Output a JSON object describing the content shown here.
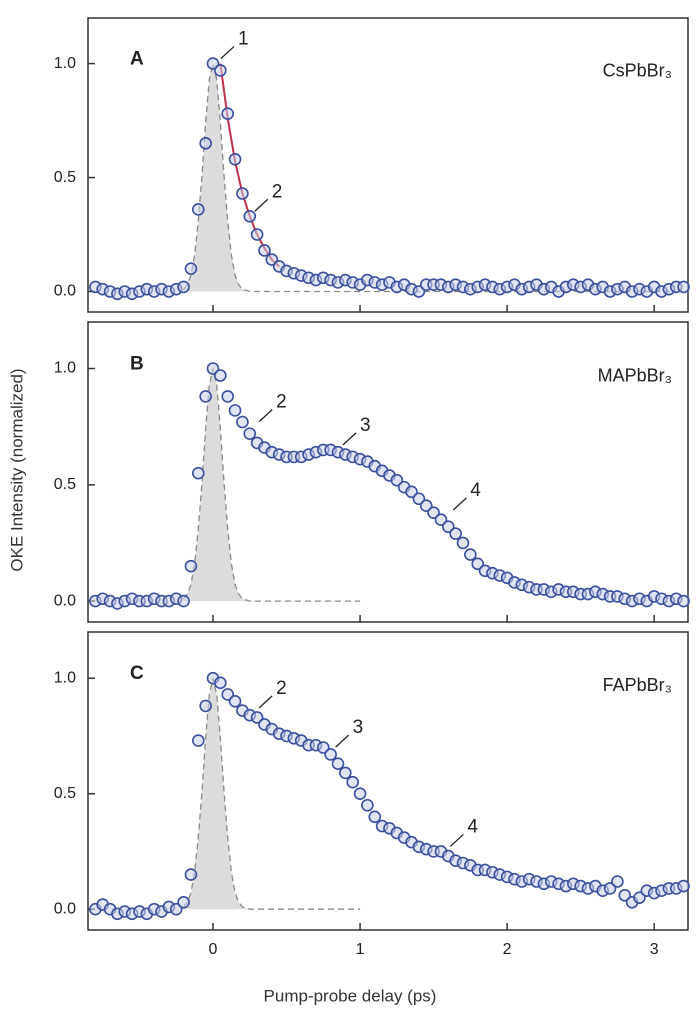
{
  "figure": {
    "xlabel": "Pump-probe delay (ps)",
    "ylabel": "OKE Intensity (normalized)"
  },
  "chart_data": [
    {
      "type": "scatter",
      "panel_label": "A",
      "compound": "CsPbBr₃",
      "xlim": [
        -0.85,
        3.23
      ],
      "ylim": [
        -0.09,
        1.2
      ],
      "xticks": [
        0,
        1,
        2,
        3
      ],
      "yticks": [
        {
          "value": 0,
          "label": "0.0"
        },
        0.5,
        {
          "value": 1,
          "label": "1.0"
        }
      ],
      "series": [
        {
          "style": "area",
          "color": "#888888",
          "fill": "#dcdcdc",
          "x": [
            -0.2,
            -0.175,
            -0.15,
            -0.125,
            -0.1,
            -0.075,
            -0.05,
            -0.025,
            0,
            0.025,
            0.05,
            0.075,
            0.1,
            0.125,
            0.15,
            0.175,
            0.2,
            0.25,
            0.5,
            1.0,
            2.0,
            3.2
          ],
          "values": [
            0.01,
            0.03,
            0.07,
            0.16,
            0.31,
            0.51,
            0.74,
            0.93,
            1,
            0.93,
            0.74,
            0.51,
            0.31,
            0.16,
            0.07,
            0.03,
            0.01,
            0,
            0,
            0,
            0,
            0
          ]
        },
        {
          "style": "line",
          "color": "#c0304a",
          "x": [
            0.05,
            0.1,
            0.15,
            0.2,
            0.25,
            0.3,
            0.35,
            0.4,
            0.45
          ],
          "values": [
            1,
            0.76,
            0.57,
            0.43,
            0.33,
            0.25,
            0.19,
            0.14,
            0.11
          ]
        },
        {
          "style": "markers",
          "color": "#3a4fa0",
          "x": [
            -0.8,
            -0.75,
            -0.7,
            -0.65,
            -0.6,
            -0.55,
            -0.5,
            -0.45,
            -0.4,
            -0.35,
            -0.3,
            -0.25,
            -0.2,
            -0.15,
            -0.1,
            -0.05,
            0,
            0.05,
            0.1,
            0.15,
            0.2,
            0.25,
            0.3,
            0.35,
            0.4,
            0.45,
            0.5,
            0.55,
            0.6,
            0.65,
            0.7,
            0.75,
            0.8,
            0.85,
            0.9,
            0.95,
            1.0,
            1.05,
            1.1,
            1.15,
            1.2,
            1.25,
            1.3,
            1.35,
            1.4,
            1.45,
            1.5,
            1.55,
            1.6,
            1.65,
            1.7,
            1.75,
            1.8,
            1.85,
            1.9,
            1.95,
            2.0,
            2.05,
            2.1,
            2.15,
            2.2,
            2.25,
            2.3,
            2.35,
            2.4,
            2.45,
            2.5,
            2.55,
            2.6,
            2.65,
            2.7,
            2.75,
            2.8,
            2.85,
            2.9,
            2.95,
            3.0,
            3.05,
            3.1,
            3.15,
            3.2
          ],
          "values": [
            0.02,
            0.01,
            0,
            -0.01,
            0,
            -0.01,
            0,
            0.01,
            0,
            0.01,
            0,
            0.01,
            0.02,
            0.1,
            0.36,
            0.65,
            1,
            0.97,
            0.78,
            0.58,
            0.43,
            0.33,
            0.25,
            0.18,
            0.14,
            0.11,
            0.09,
            0.08,
            0.07,
            0.06,
            0.05,
            0.06,
            0.05,
            0.04,
            0.05,
            0.04,
            0.03,
            0.05,
            0.04,
            0.03,
            0.04,
            0.02,
            0.03,
            0.01,
            0,
            0.03,
            0.03,
            0.03,
            0.02,
            0.03,
            0.02,
            0.01,
            0.02,
            0.03,
            0.02,
            0.01,
            0.02,
            0.03,
            0.01,
            0.02,
            0.03,
            0.01,
            0.02,
            0,
            0.02,
            0.03,
            0.02,
            0.03,
            0.01,
            0.02,
            0,
            0.01,
            0.02,
            0,
            0.01,
            0,
            0.02,
            0,
            0.01,
            0.02,
            0.02
          ]
        }
      ],
      "annotations": [
        {
          "text": "1",
          "x": 0.02,
          "y": 1.0
        },
        {
          "text": "2",
          "x": 0.25,
          "y": 0.33
        }
      ]
    },
    {
      "type": "scatter",
      "panel_label": "B",
      "compound": "MAPbBr₃",
      "xlim": [
        -0.85,
        3.23
      ],
      "ylim": [
        -0.09,
        1.2
      ],
      "xticks": [
        0,
        1,
        2,
        3
      ],
      "yticks": [
        {
          "value": 0,
          "label": "0.0"
        },
        0.5,
        {
          "value": 1,
          "label": "1.0"
        }
      ],
      "series": [
        {
          "style": "area",
          "color": "#888888",
          "fill": "#dcdcdc",
          "x": [
            -0.2,
            -0.175,
            -0.15,
            -0.125,
            -0.1,
            -0.075,
            -0.05,
            -0.025,
            0,
            0.025,
            0.05,
            0.075,
            0.1,
            0.125,
            0.15,
            0.175,
            0.2,
            0.25,
            0.5,
            1.0
          ],
          "values": [
            0.01,
            0.03,
            0.07,
            0.16,
            0.31,
            0.51,
            0.74,
            0.93,
            1,
            0.93,
            0.74,
            0.51,
            0.31,
            0.16,
            0.07,
            0.03,
            0.01,
            0,
            0,
            0
          ]
        },
        {
          "style": "markers",
          "color": "#3a4fa0",
          "x": [
            -0.8,
            -0.75,
            -0.7,
            -0.65,
            -0.6,
            -0.55,
            -0.5,
            -0.45,
            -0.4,
            -0.35,
            -0.3,
            -0.25,
            -0.2,
            -0.15,
            -0.1,
            -0.05,
            0,
            0.05,
            0.1,
            0.15,
            0.2,
            0.25,
            0.3,
            0.35,
            0.4,
            0.45,
            0.5,
            0.55,
            0.6,
            0.65,
            0.7,
            0.75,
            0.8,
            0.85,
            0.9,
            0.95,
            1.0,
            1.05,
            1.1,
            1.15,
            1.2,
            1.25,
            1.3,
            1.35,
            1.4,
            1.45,
            1.5,
            1.55,
            1.6,
            1.65,
            1.7,
            1.75,
            1.8,
            1.85,
            1.9,
            1.95,
            2.0,
            2.05,
            2.1,
            2.15,
            2.2,
            2.25,
            2.3,
            2.35,
            2.4,
            2.45,
            2.5,
            2.55,
            2.6,
            2.65,
            2.7,
            2.75,
            2.8,
            2.85,
            2.9,
            2.95,
            3.0,
            3.05,
            3.1,
            3.15,
            3.2
          ],
          "values": [
            0,
            0.01,
            0,
            -0.01,
            0,
            0.01,
            0,
            0,
            0.01,
            0,
            0,
            0.01,
            0,
            0.15,
            0.55,
            0.88,
            1,
            0.97,
            0.88,
            0.82,
            0.77,
            0.72,
            0.68,
            0.66,
            0.64,
            0.63,
            0.62,
            0.62,
            0.62,
            0.63,
            0.64,
            0.65,
            0.65,
            0.64,
            0.63,
            0.62,
            0.61,
            0.6,
            0.58,
            0.56,
            0.54,
            0.52,
            0.49,
            0.47,
            0.44,
            0.41,
            0.38,
            0.35,
            0.32,
            0.29,
            0.25,
            0.2,
            0.16,
            0.13,
            0.12,
            0.11,
            0.1,
            0.08,
            0.07,
            0.06,
            0.05,
            0.05,
            0.04,
            0.05,
            0.04,
            0.04,
            0.03,
            0.03,
            0.04,
            0.03,
            0.02,
            0.02,
            0.01,
            0,
            0.01,
            0,
            0.02,
            0.01,
            0,
            0.01,
            0
          ]
        }
      ],
      "annotations": [
        {
          "text": "2",
          "x": 0.28,
          "y": 0.75
        },
        {
          "text": "3",
          "x": 0.85,
          "y": 0.65
        },
        {
          "text": "4",
          "x": 1.6,
          "y": 0.37
        }
      ]
    },
    {
      "type": "scatter",
      "panel_label": "C",
      "compound": "FAPbBr₃",
      "xlim": [
        -0.85,
        3.23
      ],
      "ylim": [
        -0.09,
        1.2
      ],
      "xticks": [
        0,
        1,
        2,
        3
      ],
      "yticks": [
        {
          "value": 0,
          "label": "0.0"
        },
        0.5,
        {
          "value": 1,
          "label": "1.0"
        }
      ],
      "series": [
        {
          "style": "area",
          "color": "#888888",
          "fill": "#dcdcdc",
          "x": [
            -0.2,
            -0.175,
            -0.15,
            -0.125,
            -0.1,
            -0.075,
            -0.05,
            -0.025,
            0,
            0.025,
            0.05,
            0.075,
            0.1,
            0.125,
            0.15,
            0.175,
            0.2,
            0.25,
            0.5,
            1.0
          ],
          "values": [
            0.01,
            0.03,
            0.07,
            0.16,
            0.31,
            0.51,
            0.74,
            0.93,
            1,
            0.93,
            0.74,
            0.51,
            0.31,
            0.16,
            0.07,
            0.03,
            0.01,
            0,
            0,
            0
          ]
        },
        {
          "style": "markers",
          "color": "#3a4fa0",
          "x": [
            -0.8,
            -0.75,
            -0.7,
            -0.65,
            -0.6,
            -0.55,
            -0.5,
            -0.45,
            -0.4,
            -0.35,
            -0.3,
            -0.25,
            -0.2,
            -0.15,
            -0.1,
            -0.05,
            0,
            0.05,
            0.1,
            0.15,
            0.2,
            0.25,
            0.3,
            0.35,
            0.4,
            0.45,
            0.5,
            0.55,
            0.6,
            0.65,
            0.7,
            0.75,
            0.8,
            0.85,
            0.9,
            0.95,
            1.0,
            1.05,
            1.1,
            1.15,
            1.2,
            1.25,
            1.3,
            1.35,
            1.4,
            1.45,
            1.5,
            1.55,
            1.6,
            1.65,
            1.7,
            1.75,
            1.8,
            1.85,
            1.9,
            1.95,
            2.0,
            2.05,
            2.1,
            2.15,
            2.2,
            2.25,
            2.3,
            2.35,
            2.4,
            2.45,
            2.5,
            2.55,
            2.6,
            2.65,
            2.7,
            2.75,
            2.8,
            2.85,
            2.9,
            2.95,
            3.0,
            3.05,
            3.1,
            3.15,
            3.2
          ],
          "values": [
            0,
            0.02,
            0,
            -0.02,
            -0.01,
            -0.02,
            -0.01,
            -0.02,
            0,
            -0.01,
            0.01,
            0,
            0.03,
            0.15,
            0.73,
            0.88,
            1,
            0.98,
            0.93,
            0.9,
            0.86,
            0.84,
            0.83,
            0.8,
            0.78,
            0.76,
            0.75,
            0.74,
            0.73,
            0.71,
            0.71,
            0.7,
            0.67,
            0.63,
            0.59,
            0.55,
            0.5,
            0.45,
            0.4,
            0.36,
            0.35,
            0.33,
            0.31,
            0.29,
            0.27,
            0.26,
            0.25,
            0.25,
            0.23,
            0.21,
            0.2,
            0.19,
            0.17,
            0.17,
            0.16,
            0.15,
            0.14,
            0.13,
            0.12,
            0.13,
            0.12,
            0.11,
            0.12,
            0.11,
            0.1,
            0.11,
            0.1,
            0.09,
            0.1,
            0.08,
            0.09,
            0.12,
            0.06,
            0.03,
            0.05,
            0.08,
            0.07,
            0.08,
            0.09,
            0.09,
            0.1
          ]
        }
      ],
      "annotations": [
        {
          "text": "2",
          "x": 0.28,
          "y": 0.85
        },
        {
          "text": "3",
          "x": 0.8,
          "y": 0.68
        },
        {
          "text": "4",
          "x": 1.58,
          "y": 0.25
        }
      ]
    }
  ]
}
